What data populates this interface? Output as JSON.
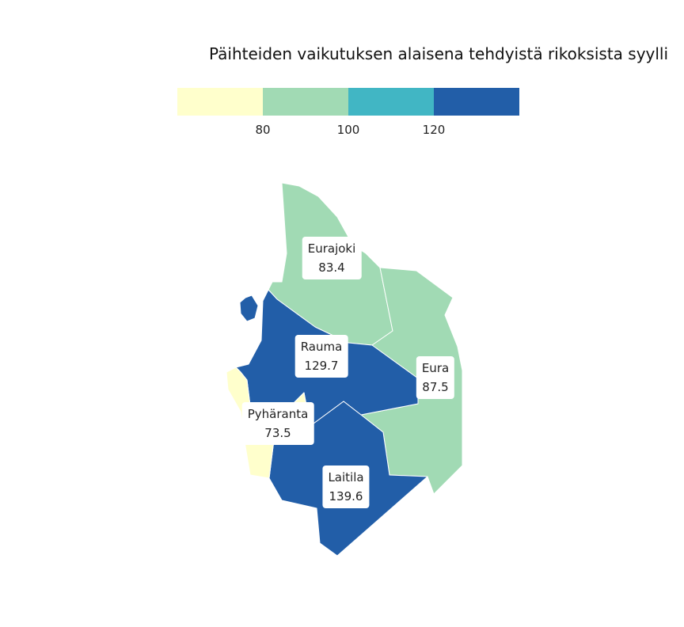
{
  "title": "Päihteiden vaikutuksen alaisena tehdyistä rikoksista syylli",
  "legend": {
    "colors": [
      "#ffffcc",
      "#a1dab4",
      "#41b6c4",
      "#225ea8"
    ],
    "ticks": [
      "80",
      "100",
      "120"
    ]
  },
  "regions": [
    {
      "name": "Eurajoki",
      "value": "83.4",
      "color": "#a1dab4"
    },
    {
      "name": "Rauma",
      "value": "129.7",
      "color": "#225ea8"
    },
    {
      "name": "Eura",
      "value": "87.5",
      "color": "#a1dab4"
    },
    {
      "name": "Pyhäranta",
      "value": "73.5",
      "color": "#ffffcc"
    },
    {
      "name": "Laitila",
      "value": "139.6",
      "color": "#225ea8"
    }
  ]
}
